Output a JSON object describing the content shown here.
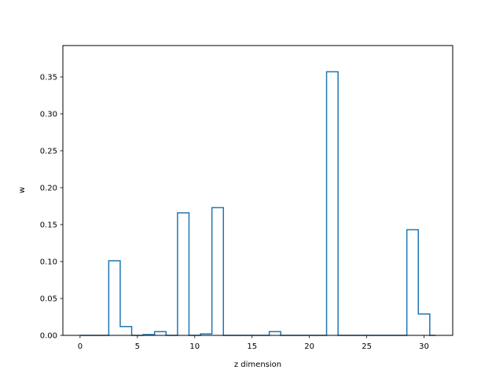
{
  "chart_data": {
    "type": "bar",
    "style": "step-outline",
    "xlabel": "z dimension",
    "ylabel": "w",
    "xlim": [
      -1.5,
      32.5
    ],
    "ylim": [
      0,
      0.3925
    ],
    "xticks": [
      0,
      5,
      10,
      15,
      20,
      25,
      30
    ],
    "yticks": [
      0.0,
      0.05,
      0.1,
      0.15,
      0.2,
      0.25,
      0.3,
      0.35
    ],
    "ytick_labels": [
      "0.00",
      "0.05",
      "0.10",
      "0.15",
      "0.20",
      "0.25",
      "0.30",
      "0.35"
    ],
    "x_start": 0,
    "x_end": 31,
    "values": [
      0.0,
      0.0,
      0.0,
      0.101,
      0.012,
      0.0,
      0.001,
      0.005,
      0.0,
      0.166,
      0.0,
      0.002,
      0.173,
      0.0,
      0.0,
      0.0,
      0.0,
      0.005,
      0.0,
      0.0,
      0.0,
      0.0,
      0.357,
      0.0,
      0.0,
      0.0,
      0.0,
      0.0,
      0.0,
      0.143,
      0.029,
      0.0
    ],
    "color": "#1f77b4",
    "grid": false
  }
}
